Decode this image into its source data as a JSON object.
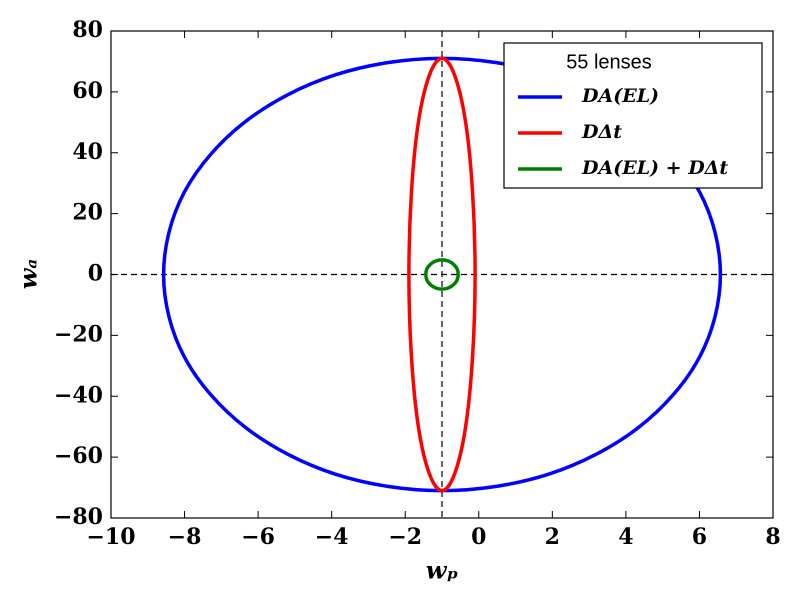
{
  "chart_data": {
    "type": "ellipse",
    "legend_title": "55 lenses",
    "xlabel": "wₚ",
    "ylabel": "wₐ",
    "xlim": [
      -10,
      8
    ],
    "xticks": [
      {
        "value": -10,
        "label": "−10"
      },
      {
        "value": -8,
        "label": "−8"
      },
      {
        "value": -6,
        "label": "−6"
      },
      {
        "value": -4,
        "label": "−4"
      },
      {
        "value": -2,
        "label": "−2"
      },
      0,
      2,
      4,
      6,
      8
    ],
    "ylim": [
      -80,
      80
    ],
    "yticks": [
      {
        "value": -80,
        "label": "−80"
      },
      {
        "value": -60,
        "label": "−60"
      },
      {
        "value": -40,
        "label": "−40"
      },
      {
        "value": -20,
        "label": "−20"
      },
      0,
      20,
      40,
      60,
      80
    ],
    "hlines": [
      0
    ],
    "vlines": [
      -1
    ],
    "legend": "upper right",
    "series": [
      {
        "name": "DA(EL)",
        "color": "#0000ff",
        "x": [
          6.57,
          6.0,
          4.35,
          1.9,
          -1,
          -3.9,
          -6.35,
          -8.0,
          -8.57,
          -8.0,
          -6.35,
          -3.9,
          -1,
          1.9,
          4.35,
          6.0
        ],
        "y": [
          0,
          27.2,
          50.2,
          65.6,
          71,
          65.6,
          50.2,
          27.2,
          0,
          -27.2,
          -50.2,
          -65.6,
          -71,
          -65.6,
          -50.2,
          -27.2
        ]
      },
      {
        "name": "DΔt",
        "color": "#ff0000",
        "x": [
          -0.1,
          -0.17,
          -0.36,
          -0.66,
          -1,
          -1.34,
          -1.64,
          -1.83,
          -1.9,
          -1.83,
          -1.64,
          -1.34,
          -1,
          -0.66,
          -0.36,
          -0.17
        ],
        "y": [
          0,
          27.2,
          50.2,
          65.6,
          71,
          65.6,
          50.2,
          27.2,
          0,
          -27.2,
          -50.2,
          -65.6,
          -71,
          -65.6,
          -50.2,
          -27.2
        ]
      },
      {
        "name": "DA(EL) + DΔt",
        "color": "#008000",
        "x": [
          -0.56,
          -0.59,
          -0.69,
          -0.83,
          -1,
          -1.17,
          -1.31,
          -1.41,
          -1.44,
          -1.41,
          -1.31,
          -1.17,
          -1,
          -0.83,
          -0.69,
          -0.59
        ],
        "y": [
          0,
          1.84,
          3.39,
          4.43,
          4.8,
          4.43,
          3.39,
          1.84,
          0,
          -1.84,
          -3.39,
          -4.43,
          -4.8,
          -4.43,
          -3.39,
          -1.84
        ]
      }
    ]
  }
}
